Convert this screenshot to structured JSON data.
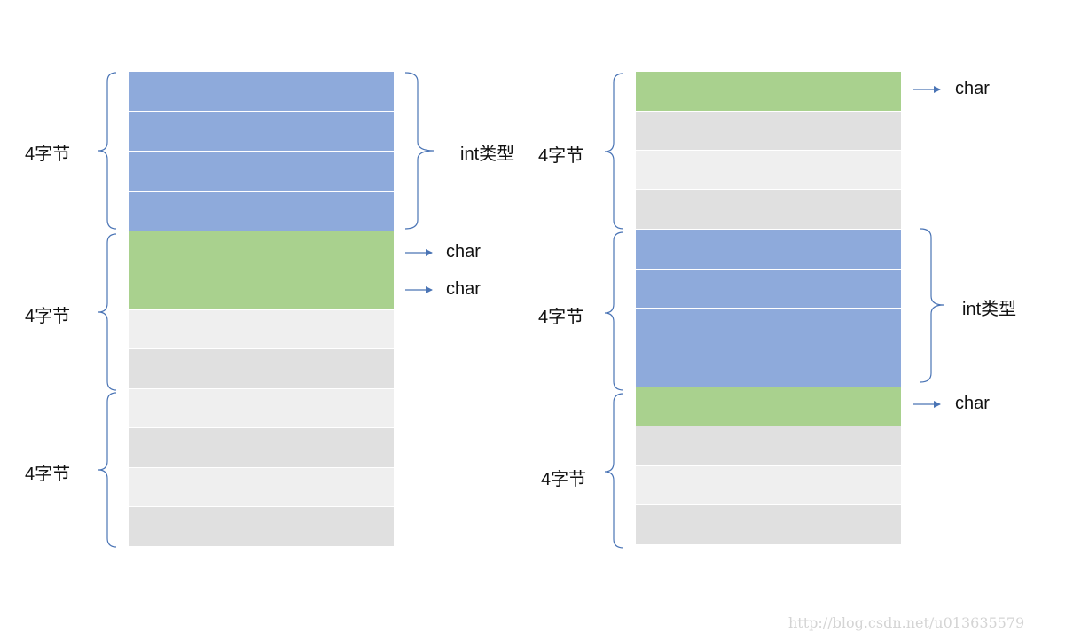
{
  "colors": {
    "int": "#8eaadb",
    "char": "#a9d18e",
    "padding_dark": "#e0e0e0",
    "padding_light": "#efefef",
    "brace": "#4a74b5",
    "arrow": "#4a74b5"
  },
  "left": {
    "cells": [
      "int",
      "int",
      "int",
      "int",
      "char",
      "char",
      "padding_light",
      "padding_dark",
      "padding_light",
      "padding_dark",
      "padding_light",
      "padding_dark"
    ],
    "group_labels": [
      "4字节",
      "4字节",
      "4字节"
    ],
    "int_label": "int类型",
    "char_labels": [
      "char",
      "char"
    ]
  },
  "right": {
    "cells": [
      "char",
      "padding_dark",
      "padding_light",
      "padding_dark",
      "int",
      "int",
      "int",
      "int",
      "char",
      "padding_dark",
      "padding_light",
      "padding_dark"
    ],
    "group_labels": [
      "4字节",
      "4字节",
      "4字节"
    ],
    "int_label": "int类型",
    "char_labels": [
      "char",
      "char"
    ]
  },
  "watermark": "http://blog.csdn.net/u013635579"
}
